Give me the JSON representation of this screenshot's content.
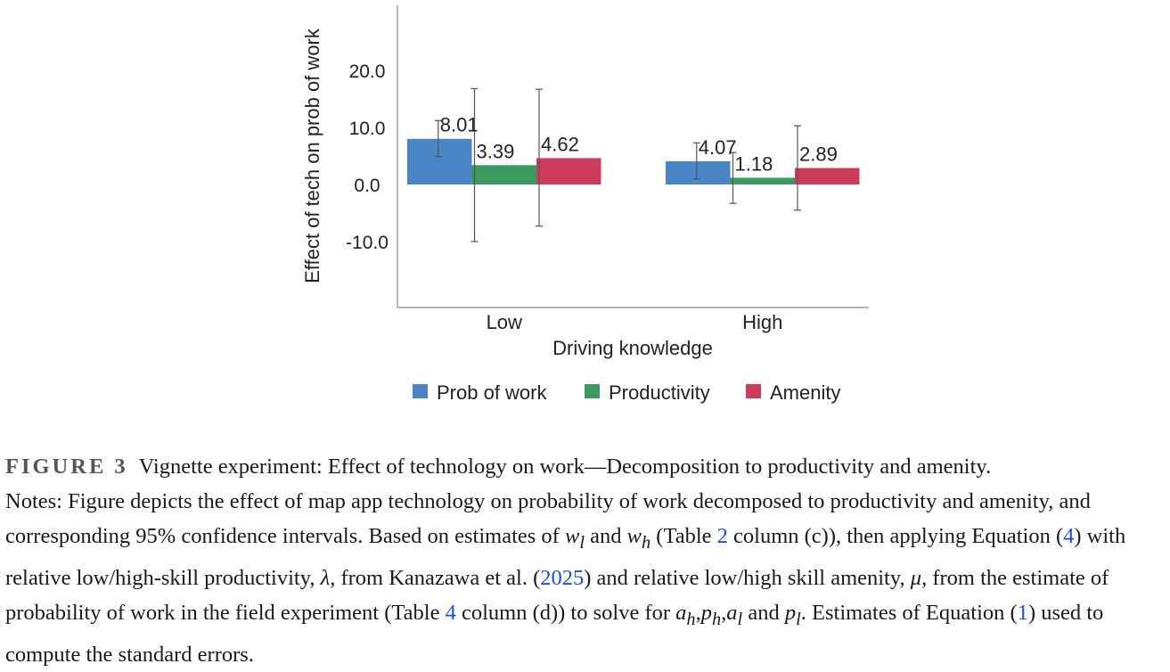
{
  "chart_data": {
    "type": "bar",
    "title": "",
    "xlabel": "Driving knowledge",
    "ylabel": "Effect of tech on prob of work",
    "categories": [
      "Low",
      "High"
    ],
    "ylim": [
      -21,
      32
    ],
    "yticks": [
      20.0,
      10.0,
      0.0,
      -10.0
    ],
    "ytick_labels": [
      "20.0",
      "10.0",
      "0.0",
      "-10.0"
    ],
    "grid": false,
    "legend_position": "bottom",
    "series": [
      {
        "name": "Prob of work",
        "color": "#4a86c5",
        "values": [
          8.01,
          4.07
        ],
        "labels": [
          "8.01",
          "4.07"
        ],
        "ci_low": [
          4.9,
          1.0
        ],
        "ci_high": [
          11.2,
          7.3
        ]
      },
      {
        "name": "Productivity",
        "color": "#3a9a5c",
        "values": [
          3.39,
          1.18
        ],
        "labels": [
          "3.39",
          "1.18"
        ],
        "ci_low": [
          -10.0,
          -3.3
        ],
        "ci_high": [
          16.8,
          5.6
        ]
      },
      {
        "name": "Amenity",
        "color": "#cc3d5c",
        "values": [
          4.62,
          2.89
        ],
        "labels": [
          "4.62",
          "2.89"
        ],
        "ci_low": [
          -7.3,
          -4.5
        ],
        "ci_high": [
          16.7,
          10.3
        ]
      }
    ]
  },
  "caption": {
    "label": "FIGURE 3",
    "title": "Vignette experiment: Effect of technology on work—Decomposition to productivity and amenity.",
    "t1": "Notes: Figure depicts the effect of map app technology on probability of work decomposed to productivity and amenity, and corresponding 95% confidence intervals. Based on estimates of ",
    "wl": "w",
    "wl_sub": "l",
    "t2": " and ",
    "wh": "w",
    "wh_sub": "h",
    "t3": " (Table ",
    "ref_table2": "2",
    "t4": " column (c)), then applying Equation (",
    "ref_eq4": "4",
    "t5": ") with relative low/high-skill productivity, ",
    "lambda": "λ",
    "t6": ", from Kanazawa et al. (",
    "ref_year": "2025",
    "t7": ") and relative low/high skill amenity, ",
    "mu": "μ",
    "t8": ", from the estimate of probability of work in the field experiment (Table ",
    "ref_table4": "4",
    "t9": " column (d)) to solve for ",
    "ah": "a",
    "ah_sub": "h",
    "comma1": ",",
    "ph": "p",
    "ph_sub": "h",
    "comma2": ",",
    "al": "a",
    "al_sub": "l",
    "t10": " and ",
    "pl": "p",
    "pl_sub": "l",
    "t11": ". Estimates of Equation (",
    "ref_eq1": "1",
    "t12": ") used to compute the standard errors."
  }
}
